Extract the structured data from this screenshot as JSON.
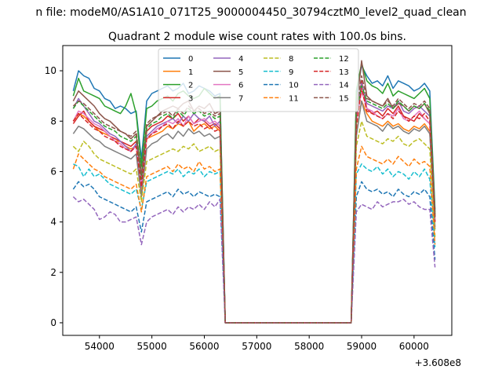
{
  "chart_data": {
    "type": "line",
    "suptitle": "n file: modeM0/AS1A10_071T25_9000004450_30794cztM0_level2_quad_clean",
    "title": "Quadrant 2 module wise count rates with 100.0s bins.",
    "xlabel": "",
    "ylabel": "",
    "x_offset_label": "+3.608e8",
    "xlim": [
      53300,
      60720
    ],
    "ylim": [
      -0.5,
      11.0
    ],
    "x_ticks": [
      54000,
      55000,
      56000,
      57000,
      58000,
      59000,
      60000
    ],
    "y_ticks": [
      0,
      2,
      4,
      6,
      8,
      10
    ],
    "grid": false,
    "legend_position": "upper center",
    "legend_columns": 4,
    "x": [
      53500,
      53600,
      53700,
      53800,
      53900,
      54000,
      54100,
      54200,
      54300,
      54400,
      54500,
      54600,
      54700,
      54800,
      54900,
      55000,
      55100,
      55200,
      55300,
      55400,
      55500,
      55600,
      55700,
      55800,
      55900,
      56000,
      56100,
      56200,
      56300,
      56400,
      56500,
      56600,
      56700,
      56800,
      56900,
      57000,
      57100,
      57200,
      57300,
      57400,
      57500,
      57600,
      57700,
      57800,
      57900,
      58000,
      58100,
      58200,
      58300,
      58400,
      58500,
      58600,
      58700,
      58800,
      58900,
      59000,
      59100,
      59200,
      59300,
      59400,
      59500,
      59600,
      59700,
      59800,
      59900,
      60000,
      60100,
      60200,
      60300,
      60400
    ],
    "series": [
      {
        "name": "0",
        "color": "#1f77b4",
        "dash": "solid",
        "values": [
          9.2,
          10.0,
          9.8,
          9.7,
          9.3,
          9.2,
          8.9,
          8.8,
          8.5,
          8.6,
          8.5,
          8.3,
          8.4,
          6.5,
          8.8,
          9.1,
          9.2,
          9.3,
          9.4,
          9.2,
          9.3,
          9.5,
          9.1,
          9.2,
          9.4,
          9.3,
          9.2,
          9.0,
          9.1,
          0,
          0,
          0,
          0,
          0,
          0,
          0,
          0,
          0,
          0,
          0,
          0,
          0,
          0,
          0,
          0,
          0,
          0,
          0,
          0,
          0,
          0,
          0,
          0,
          0,
          9.0,
          10.2,
          9.8,
          9.5,
          9.6,
          9.4,
          9.8,
          9.3,
          9.6,
          9.5,
          9.4,
          9.2,
          9.3,
          9.5,
          9.2,
          4.5
        ]
      },
      {
        "name": "1",
        "color": "#ff7f0e",
        "dash": "solid",
        "values": [
          8.0,
          8.3,
          8.2,
          8.0,
          7.8,
          7.6,
          7.5,
          7.4,
          7.2,
          7.2,
          7.0,
          6.9,
          7.0,
          5.2,
          7.3,
          7.4,
          7.5,
          7.6,
          7.8,
          7.7,
          7.9,
          7.8,
          8.0,
          7.6,
          7.8,
          7.9,
          7.7,
          7.8,
          7.6,
          0,
          0,
          0,
          0,
          0,
          0,
          0,
          0,
          0,
          0,
          0,
          0,
          0,
          0,
          0,
          0,
          0,
          0,
          0,
          0,
          0,
          0,
          0,
          0,
          0,
          7.5,
          8.8,
          8.3,
          8.0,
          7.9,
          7.8,
          8.0,
          7.8,
          7.9,
          7.7,
          7.6,
          7.8,
          7.7,
          7.9,
          7.6,
          3.8
        ]
      },
      {
        "name": "2",
        "color": "#2ca02c",
        "dash": "solid",
        "values": [
          9.0,
          9.7,
          9.2,
          9.1,
          9.0,
          8.9,
          8.6,
          8.5,
          8.4,
          8.3,
          8.6,
          9.1,
          8.3,
          6.2,
          8.5,
          8.6,
          8.8,
          8.9,
          9.0,
          8.8,
          9.1,
          9.2,
          9.0,
          8.9,
          9.0,
          9.3,
          9.1,
          8.9,
          9.0,
          0,
          0,
          0,
          0,
          0,
          0,
          0,
          0,
          0,
          0,
          0,
          0,
          0,
          0,
          0,
          0,
          0,
          0,
          0,
          0,
          0,
          0,
          0,
          0,
          0,
          9.2,
          10.3,
          9.6,
          9.4,
          9.3,
          9.1,
          9.5,
          9.0,
          9.2,
          9.1,
          9.0,
          8.9,
          9.1,
          9.3,
          8.9,
          4.4
        ]
      },
      {
        "name": "3",
        "color": "#d62728",
        "dash": "solid",
        "values": [
          7.9,
          8.2,
          8.4,
          8.0,
          7.8,
          7.7,
          7.6,
          7.4,
          7.3,
          7.2,
          7.1,
          7.0,
          7.2,
          5.6,
          7.6,
          7.8,
          7.9,
          8.0,
          8.2,
          8.1,
          8.3,
          8.0,
          8.2,
          7.9,
          8.1,
          8.0,
          7.8,
          7.9,
          7.7,
          0,
          0,
          0,
          0,
          0,
          0,
          0,
          0,
          0,
          0,
          0,
          0,
          0,
          0,
          0,
          0,
          0,
          0,
          0,
          0,
          0,
          0,
          0,
          0,
          0,
          8.0,
          9.6,
          8.5,
          8.3,
          8.4,
          8.2,
          8.5,
          8.3,
          8.6,
          8.2,
          8.1,
          8.0,
          8.3,
          8.1,
          7.9,
          4.0
        ]
      },
      {
        "name": "4",
        "color": "#9467bd",
        "dash": "solid",
        "values": [
          8.5,
          8.9,
          8.6,
          8.3,
          8.0,
          7.9,
          7.7,
          7.5,
          7.4,
          7.2,
          7.0,
          6.8,
          7.1,
          5.4,
          7.4,
          7.6,
          7.8,
          7.9,
          8.0,
          8.1,
          7.9,
          8.2,
          8.0,
          8.3,
          8.1,
          8.0,
          8.2,
          7.8,
          8.0,
          0,
          0,
          0,
          0,
          0,
          0,
          0,
          0,
          0,
          0,
          0,
          0,
          0,
          0,
          0,
          0,
          0,
          0,
          0,
          0,
          0,
          0,
          0,
          0,
          0,
          8.3,
          9.5,
          8.7,
          8.6,
          8.5,
          8.4,
          8.6,
          8.5,
          8.8,
          8.4,
          8.3,
          8.5,
          8.6,
          8.4,
          8.2,
          4.2
        ]
      },
      {
        "name": "5",
        "color": "#8c564b",
        "dash": "solid",
        "values": [
          8.8,
          9.2,
          9.0,
          8.8,
          8.6,
          8.3,
          8.1,
          8.0,
          7.8,
          7.6,
          7.5,
          7.3,
          7.5,
          5.8,
          7.8,
          8.0,
          8.2,
          8.4,
          8.5,
          8.6,
          8.5,
          8.7,
          8.8,
          8.4,
          8.6,
          8.5,
          8.7,
          8.3,
          8.4,
          0,
          0,
          0,
          0,
          0,
          0,
          0,
          0,
          0,
          0,
          0,
          0,
          0,
          0,
          0,
          0,
          0,
          0,
          0,
          0,
          0,
          0,
          0,
          0,
          0,
          8.5,
          10.4,
          9.0,
          8.8,
          8.7,
          8.6,
          8.9,
          8.5,
          8.7,
          8.6,
          8.4,
          8.6,
          8.5,
          8.7,
          8.3,
          4.3
        ]
      },
      {
        "name": "6",
        "color": "#e377c2",
        "dash": "solid",
        "values": [
          8.0,
          8.4,
          8.3,
          8.1,
          7.9,
          7.8,
          7.6,
          7.4,
          7.2,
          7.1,
          6.9,
          6.8,
          7.0,
          5.5,
          7.3,
          7.5,
          7.7,
          7.8,
          8.0,
          7.9,
          8.1,
          7.8,
          8.2,
          7.9,
          8.0,
          8.1,
          7.9,
          8.0,
          7.8,
          0,
          0,
          0,
          0,
          0,
          0,
          0,
          0,
          0,
          0,
          0,
          0,
          0,
          0,
          0,
          0,
          0,
          0,
          0,
          0,
          0,
          0,
          0,
          0,
          0,
          8.0,
          9.2,
          8.5,
          8.4,
          8.2,
          8.1,
          8.3,
          8.2,
          8.5,
          8.1,
          8.0,
          8.2,
          8.4,
          8.1,
          7.9,
          4.1
        ]
      },
      {
        "name": "7",
        "color": "#7f7f7f",
        "dash": "solid",
        "values": [
          7.5,
          7.8,
          7.7,
          7.5,
          7.3,
          7.2,
          7.0,
          6.9,
          6.8,
          6.7,
          6.6,
          6.5,
          6.7,
          5.0,
          6.9,
          7.1,
          7.2,
          7.4,
          7.5,
          7.3,
          7.6,
          7.4,
          7.7,
          7.5,
          7.6,
          7.4,
          7.5,
          7.3,
          7.4,
          0,
          0,
          0,
          0,
          0,
          0,
          0,
          0,
          0,
          0,
          0,
          0,
          0,
          0,
          0,
          0,
          0,
          0,
          0,
          0,
          0,
          0,
          0,
          0,
          0,
          7.4,
          8.8,
          8.0,
          7.9,
          7.8,
          7.6,
          7.9,
          7.7,
          7.8,
          7.6,
          7.5,
          7.7,
          7.6,
          7.8,
          7.5,
          3.7
        ]
      },
      {
        "name": "8",
        "color": "#bcbd22",
        "dash": "dashed",
        "values": [
          7.0,
          6.8,
          7.2,
          7.0,
          6.7,
          6.5,
          6.4,
          6.3,
          6.2,
          6.1,
          6.0,
          5.9,
          6.1,
          4.8,
          6.4,
          6.5,
          6.6,
          6.7,
          6.8,
          6.9,
          6.8,
          7.0,
          6.9,
          7.1,
          6.8,
          6.9,
          7.0,
          6.8,
          6.9,
          0,
          0,
          0,
          0,
          0,
          0,
          0,
          0,
          0,
          0,
          0,
          0,
          0,
          0,
          0,
          0,
          0,
          0,
          0,
          0,
          0,
          0,
          0,
          0,
          0,
          7.0,
          8.0,
          7.4,
          7.3,
          7.2,
          7.1,
          7.3,
          7.2,
          7.4,
          7.1,
          7.0,
          7.2,
          7.3,
          7.1,
          6.9,
          3.4
        ]
      },
      {
        "name": "9",
        "color": "#17becf",
        "dash": "dashed",
        "values": [
          6.3,
          6.2,
          5.8,
          6.1,
          5.8,
          5.9,
          5.7,
          5.5,
          5.4,
          5.3,
          5.2,
          5.1,
          5.3,
          4.5,
          5.6,
          5.7,
          5.8,
          5.9,
          6.0,
          5.9,
          6.1,
          5.8,
          6.0,
          5.9,
          6.1,
          5.8,
          6.0,
          5.9,
          6.0,
          0,
          0,
          0,
          0,
          0,
          0,
          0,
          0,
          0,
          0,
          0,
          0,
          0,
          0,
          0,
          0,
          0,
          0,
          0,
          0,
          0,
          0,
          0,
          0,
          0,
          5.9,
          6.3,
          6.1,
          6.0,
          6.2,
          5.9,
          6.1,
          5.8,
          6.0,
          5.9,
          5.7,
          6.0,
          5.8,
          6.1,
          5.7,
          3.0
        ]
      },
      {
        "name": "10",
        "color": "#1f77b4",
        "dash": "dashed",
        "values": [
          5.3,
          5.6,
          5.4,
          5.5,
          5.3,
          5.0,
          4.9,
          4.8,
          4.7,
          4.6,
          4.5,
          4.4,
          4.6,
          3.6,
          4.8,
          4.9,
          5.0,
          5.1,
          5.2,
          5.0,
          5.3,
          5.1,
          5.2,
          5.0,
          5.2,
          5.1,
          5.0,
          5.1,
          5.0,
          0,
          0,
          0,
          0,
          0,
          0,
          0,
          0,
          0,
          0,
          0,
          0,
          0,
          0,
          0,
          0,
          0,
          0,
          0,
          0,
          0,
          0,
          0,
          0,
          0,
          5.0,
          5.6,
          5.3,
          5.2,
          5.3,
          5.1,
          5.2,
          5.0,
          5.3,
          5.1,
          5.0,
          5.2,
          5.1,
          5.3,
          5.0,
          2.5
        ]
      },
      {
        "name": "11",
        "color": "#ff7f0e",
        "dash": "dashed",
        "values": [
          6.1,
          6.7,
          6.5,
          6.3,
          6.1,
          6.0,
          5.8,
          5.7,
          5.6,
          5.5,
          5.4,
          5.3,
          5.5,
          4.4,
          5.8,
          5.9,
          6.0,
          6.1,
          6.2,
          6.0,
          6.3,
          6.1,
          6.2,
          6.0,
          6.4,
          6.1,
          6.2,
          6.0,
          6.1,
          0,
          0,
          0,
          0,
          0,
          0,
          0,
          0,
          0,
          0,
          0,
          0,
          0,
          0,
          0,
          0,
          0,
          0,
          0,
          0,
          0,
          0,
          0,
          0,
          0,
          6.1,
          7.0,
          6.6,
          6.5,
          6.4,
          6.3,
          6.5,
          6.3,
          6.6,
          6.4,
          6.2,
          6.5,
          6.3,
          6.4,
          6.2,
          3.1
        ]
      },
      {
        "name": "12",
        "color": "#2ca02c",
        "dash": "dashed",
        "values": [
          8.5,
          8.8,
          8.6,
          8.4,
          8.2,
          8.0,
          7.8,
          7.7,
          7.6,
          7.4,
          7.3,
          7.2,
          7.4,
          5.7,
          7.7,
          7.9,
          8.0,
          8.2,
          8.3,
          8.1,
          8.4,
          8.2,
          8.5,
          8.3,
          8.4,
          8.2,
          8.3,
          8.1,
          8.2,
          0,
          0,
          0,
          0,
          0,
          0,
          0,
          0,
          0,
          0,
          0,
          0,
          0,
          0,
          0,
          0,
          0,
          0,
          0,
          0,
          0,
          0,
          0,
          0,
          0,
          8.3,
          9.4,
          8.8,
          8.7,
          8.6,
          8.5,
          8.7,
          8.5,
          8.8,
          8.6,
          8.4,
          8.6,
          8.5,
          8.7,
          8.4,
          4.2
        ]
      },
      {
        "name": "13",
        "color": "#d62728",
        "dash": "dashed",
        "values": [
          8.0,
          8.3,
          8.1,
          7.9,
          7.7,
          7.6,
          7.4,
          7.3,
          7.2,
          7.0,
          6.9,
          6.8,
          7.0,
          5.4,
          7.3,
          7.5,
          7.6,
          7.8,
          7.9,
          7.7,
          8.0,
          7.8,
          8.0,
          7.8,
          7.9,
          7.7,
          7.8,
          7.6,
          7.7,
          0,
          0,
          0,
          0,
          0,
          0,
          0,
          0,
          0,
          0,
          0,
          0,
          0,
          0,
          0,
          0,
          0,
          0,
          0,
          0,
          0,
          0,
          0,
          0,
          0,
          7.8,
          9.3,
          8.4,
          8.3,
          8.2,
          8.1,
          8.3,
          8.1,
          8.4,
          8.2,
          8.0,
          8.2,
          8.1,
          8.3,
          8.0,
          4.0
        ]
      },
      {
        "name": "14",
        "color": "#9467bd",
        "dash": "dashed",
        "values": [
          5.0,
          4.8,
          4.9,
          4.7,
          4.5,
          4.1,
          4.2,
          4.4,
          4.3,
          4.0,
          4.0,
          4.1,
          4.2,
          3.1,
          4.0,
          4.2,
          4.3,
          4.4,
          4.5,
          4.3,
          4.6,
          4.4,
          4.6,
          4.5,
          4.7,
          4.5,
          4.8,
          4.6,
          4.9,
          0,
          0,
          0,
          0,
          0,
          0,
          0,
          0,
          0,
          0,
          0,
          0,
          0,
          0,
          0,
          0,
          0,
          0,
          0,
          0,
          0,
          0,
          0,
          0,
          0,
          4.4,
          4.7,
          4.6,
          4.5,
          4.8,
          4.6,
          4.7,
          4.8,
          4.8,
          4.9,
          4.7,
          4.8,
          4.6,
          4.5,
          4.5,
          2.2
        ]
      },
      {
        "name": "15",
        "color": "#8c564b",
        "dash": "dashed",
        "values": [
          8.6,
          8.8,
          8.7,
          8.5,
          8.3,
          8.1,
          7.9,
          7.8,
          7.7,
          7.6,
          7.5,
          7.4,
          7.6,
          5.9,
          7.9,
          8.1,
          8.2,
          8.3,
          8.4,
          8.2,
          8.5,
          8.3,
          8.6,
          8.4,
          8.5,
          8.3,
          8.4,
          8.2,
          8.3,
          0,
          0,
          0,
          0,
          0,
          0,
          0,
          0,
          0,
          0,
          0,
          0,
          0,
          0,
          0,
          0,
          0,
          0,
          0,
          0,
          0,
          0,
          0,
          0,
          0,
          8.4,
          9.8,
          8.9,
          8.8,
          8.7,
          8.6,
          8.8,
          8.6,
          8.9,
          8.7,
          8.5,
          8.7,
          8.6,
          8.8,
          8.5,
          4.2
        ]
      }
    ]
  }
}
